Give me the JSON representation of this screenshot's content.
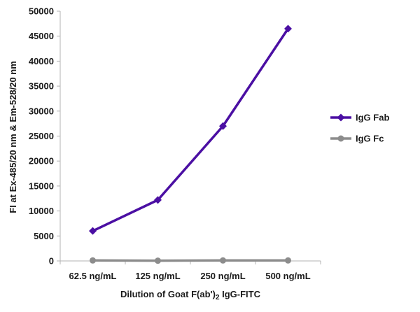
{
  "chart_data": {
    "type": "line",
    "categories": [
      "62.5 ng/mL",
      "125 ng/mL",
      "250 ng/mL",
      "500 ng/mL"
    ],
    "series": [
      {
        "name": "IgG Fab",
        "values": [
          6000,
          12200,
          27000,
          46500
        ],
        "color": "#4b0fa3",
        "marker": "diamond"
      },
      {
        "name": "IgG Fc",
        "values": [
          100,
          50,
          100,
          100
        ],
        "color": "#8c8c8c",
        "marker": "circle"
      }
    ],
    "xlabel": "Dilution of Goat F(ab')2 IgG-FITC",
    "ylabel": "FI at Ex-485/20 nm & Em-528/20 nm",
    "ylim": [
      0,
      50000
    ],
    "yticks": [
      0,
      5000,
      10000,
      15000,
      20000,
      25000,
      30000,
      35000,
      40000,
      45000,
      50000
    ],
    "grid": false,
    "legend": "right"
  }
}
